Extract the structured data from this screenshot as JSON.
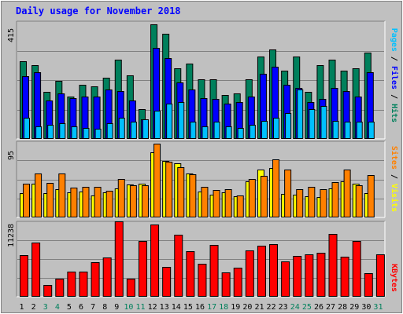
{
  "title": "Daily usage for November 2018",
  "colors": {
    "background": "#c0c0c0",
    "title": "#0000ff",
    "hits": "#00805c",
    "files": "#0000ff",
    "pages": "#00c0ff",
    "visits": "#ffff00",
    "sites": "#ff8000",
    "kbytes": "#ff0000",
    "weekend_day": "#00805c",
    "weekday": "#000000",
    "separator_slash": "#000000"
  },
  "chart_data": [
    {
      "type": "bar",
      "name": "hits-files-pages",
      "title": "Daily usage for November 2018",
      "categories": [
        "1",
        "2",
        "3",
        "4",
        "5",
        "6",
        "7",
        "8",
        "9",
        "10",
        "11",
        "12",
        "13",
        "14",
        "15",
        "16",
        "17",
        "18",
        "19",
        "20",
        "21",
        "22",
        "23",
        "24",
        "25",
        "26",
        "27",
        "28",
        "29",
        "30",
        "31"
      ],
      "weekend_days": [
        "3",
        "4",
        "10",
        "11",
        "17",
        "18",
        "24",
        "25",
        "31"
      ],
      "ymax_label": "415",
      "ylim": [
        0,
        415
      ],
      "legend": [
        "Pages",
        "Files",
        "Hits"
      ],
      "series": [
        {
          "name": "Hits",
          "values": [
            275,
            260,
            165,
            205,
            150,
            190,
            185,
            215,
            280,
            225,
            105,
            405,
            370,
            250,
            265,
            210,
            210,
            155,
            160,
            210,
            290,
            315,
            240,
            290,
            165,
            260,
            280,
            240,
            250,
            305,
            0
          ]
        },
        {
          "name": "Files",
          "values": [
            220,
            235,
            135,
            160,
            145,
            150,
            150,
            175,
            170,
            135,
            70,
            320,
            285,
            200,
            175,
            145,
            140,
            125,
            130,
            150,
            230,
            255,
            190,
            180,
            130,
            140,
            180,
            170,
            150,
            235,
            0
          ]
        },
        {
          "name": "Pages",
          "values": [
            75,
            45,
            50,
            55,
            45,
            40,
            35,
            55,
            75,
            60,
            70,
            100,
            125,
            130,
            60,
            45,
            60,
            45,
            40,
            50,
            65,
            75,
            90,
            175,
            105,
            115,
            65,
            60,
            60,
            60,
            0
          ]
        }
      ]
    },
    {
      "type": "bar",
      "name": "visits-sites",
      "categories": [
        "1",
        "2",
        "3",
        "4",
        "5",
        "6",
        "7",
        "8",
        "9",
        "10",
        "11",
        "12",
        "13",
        "14",
        "15",
        "16",
        "17",
        "18",
        "19",
        "20",
        "21",
        "22",
        "23",
        "24",
        "25",
        "26",
        "27",
        "28",
        "29",
        "30",
        "31"
      ],
      "ymax_label": "95",
      "ylim": [
        0,
        95
      ],
      "legend": [
        "Sites",
        "Visits"
      ],
      "series": [
        {
          "name": "Visits",
          "values": [
            30,
            42,
            30,
            35,
            31,
            32,
            27,
            31,
            36,
            41,
            42,
            81,
            71,
            68,
            55,
            32,
            28,
            31,
            26,
            45,
            60,
            62,
            29,
            28,
            26,
            25,
            36,
            45,
            42,
            30,
            0
          ]
        },
        {
          "name": "Sites",
          "values": [
            42,
            55,
            43,
            55,
            37,
            38,
            38,
            33,
            48,
            40,
            40,
            92,
            70,
            63,
            54,
            38,
            34,
            35,
            27,
            48,
            52,
            72,
            60,
            35,
            38,
            35,
            44,
            60,
            40,
            53,
            0
          ]
        }
      ]
    },
    {
      "type": "bar",
      "name": "kbytes",
      "categories": [
        "1",
        "2",
        "3",
        "4",
        "5",
        "6",
        "7",
        "8",
        "9",
        "10",
        "11",
        "12",
        "13",
        "14",
        "15",
        "16",
        "17",
        "18",
        "19",
        "20",
        "21",
        "22",
        "23",
        "24",
        "25",
        "26",
        "27",
        "28",
        "29",
        "30",
        "31"
      ],
      "ymax_label": "11238",
      "ylim": [
        0,
        11238
      ],
      "legend": [
        "KBytes"
      ],
      "series": [
        {
          "name": "KBytes",
          "values": [
            6250,
            8100,
            1700,
            2700,
            3800,
            3800,
            5200,
            5900,
            11238,
            2700,
            8300,
            10800,
            4500,
            9300,
            6750,
            4900,
            7700,
            3600,
            4300,
            6900,
            7600,
            7900,
            5300,
            6100,
            6300,
            6550,
            9400,
            6000,
            8300,
            3550,
            6300
          ]
        }
      ]
    }
  ]
}
